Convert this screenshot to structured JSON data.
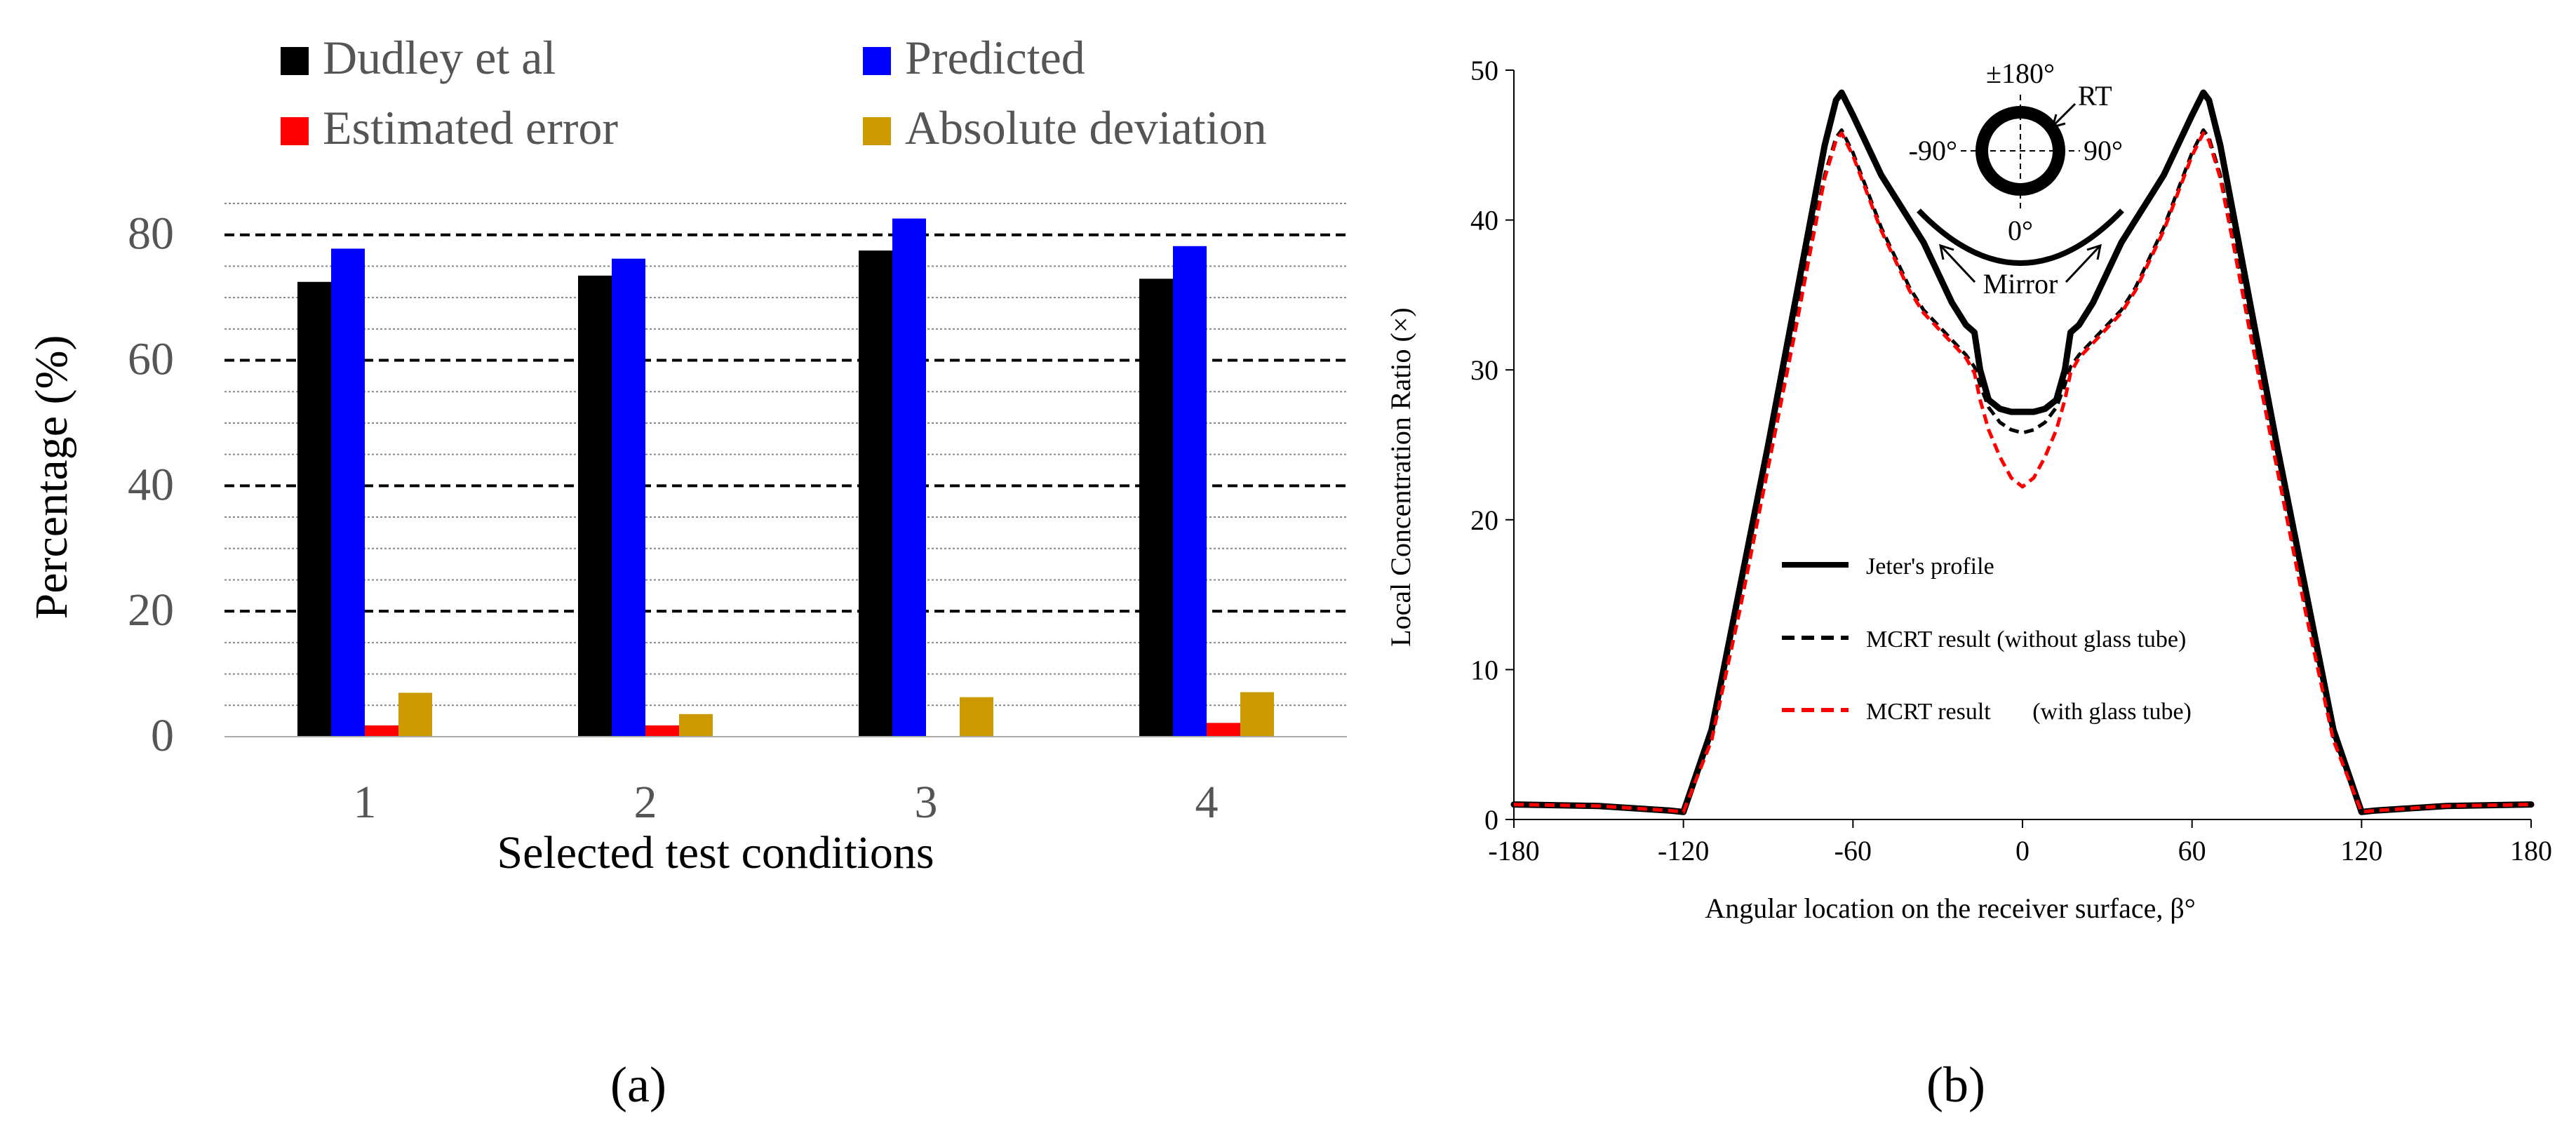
{
  "panel_a_label": "(a)",
  "panel_b_label": "(b)",
  "chart_data": [
    {
      "type": "bar",
      "title": "",
      "xlabel": "Selected test conditions",
      "ylabel": "Percentage (%)",
      "ylim": [
        0,
        85
      ],
      "yticks": [
        0,
        20,
        40,
        60,
        80
      ],
      "categories": [
        "1",
        "2",
        "3",
        "4"
      ],
      "legend_placement": "top",
      "series": [
        {
          "name": "Dudley et al",
          "color": "#000000",
          "values": [
            72.5,
            73.5,
            77.5,
            73.0
          ]
        },
        {
          "name": "Predicted",
          "color": "#0000ff",
          "values": [
            77.8,
            76.2,
            82.6,
            78.2
          ]
        },
        {
          "name": "Estimated error",
          "color": "#ff0000",
          "values": [
            1.8,
            1.8,
            0,
            2.2
          ]
        },
        {
          "name": "Absolute deviation",
          "color": "#cc9900",
          "values": [
            7.0,
            3.6,
            6.3,
            7.1
          ]
        }
      ]
    },
    {
      "type": "line",
      "title": "",
      "xlabel": "Angular location on the receiver surface, β°",
      "ylabel": "Local Concentration Ratio (×)",
      "xlim": [
        -180,
        180
      ],
      "ylim": [
        0,
        50
      ],
      "xticks": [
        -180,
        -120,
        -60,
        0,
        60,
        120,
        180
      ],
      "yticks": [
        0,
        10,
        20,
        30,
        40,
        50
      ],
      "legend_placement": "center-left",
      "series": [
        {
          "name": "Jeter's profile",
          "color": "#000000",
          "style": "solid",
          "x": [
            -180,
            -150,
            -125,
            -120,
            -110,
            -100,
            -90,
            -80,
            -75,
            -70,
            -66,
            -64,
            -60,
            -55,
            -50,
            -45,
            -40,
            -35,
            -30,
            -25,
            -20,
            -17,
            -15,
            -12,
            -8,
            -4,
            0,
            4,
            8,
            12,
            15,
            17,
            20,
            25,
            30,
            35,
            40,
            45,
            50,
            55,
            60,
            64,
            66,
            70,
            75,
            80,
            90,
            100,
            110,
            120,
            125,
            150,
            180
          ],
          "y": [
            1.0,
            0.9,
            0.6,
            0.5,
            6.0,
            15.5,
            25.0,
            35.0,
            40.0,
            45.0,
            48.0,
            48.5,
            47.0,
            45.0,
            43.0,
            41.5,
            40.0,
            38.5,
            36.5,
            34.5,
            33.0,
            32.5,
            30.0,
            28.0,
            27.4,
            27.2,
            27.2,
            27.2,
            27.4,
            28.0,
            30.0,
            32.5,
            33.0,
            34.5,
            36.5,
            38.5,
            40.0,
            41.5,
            43.0,
            45.0,
            47.0,
            48.5,
            48.0,
            45.0,
            40.0,
            35.0,
            25.0,
            15.5,
            6.0,
            0.5,
            0.6,
            0.9,
            1.0
          ]
        },
        {
          "name": "MCRT result (without glass tube)",
          "color": "#000000",
          "style": "dashed",
          "x": [
            -180,
            -150,
            -125,
            -120,
            -110,
            -100,
            -90,
            -80,
            -75,
            -70,
            -66,
            -64,
            -60,
            -55,
            -50,
            -45,
            -40,
            -35,
            -30,
            -25,
            -20,
            -17,
            -15,
            -12,
            -8,
            -4,
            0,
            4,
            8,
            12,
            15,
            17,
            20,
            25,
            30,
            35,
            40,
            45,
            50,
            55,
            60,
            64,
            66,
            70,
            75,
            80,
            90,
            100,
            110,
            120,
            125,
            150,
            180
          ],
          "y": [
            1.0,
            0.9,
            0.6,
            0.5,
            5.5,
            14.5,
            24.0,
            33.5,
            38.5,
            43.0,
            45.5,
            46.0,
            44.5,
            42.0,
            39.5,
            37.5,
            35.5,
            34.0,
            33.0,
            32.0,
            31.0,
            30.2,
            29.0,
            27.5,
            26.5,
            26.0,
            25.8,
            26.0,
            26.5,
            27.5,
            29.0,
            30.2,
            31.0,
            32.0,
            33.0,
            34.0,
            35.5,
            37.5,
            39.5,
            42.0,
            44.5,
            46.0,
            45.5,
            43.0,
            38.5,
            33.5,
            24.0,
            14.5,
            5.5,
            0.5,
            0.6,
            0.9,
            1.0
          ]
        },
        {
          "name": "MCRT result       (with glass tube)",
          "color": "#ff0000",
          "style": "dashed",
          "x": [
            -180,
            -150,
            -125,
            -120,
            -110,
            -100,
            -90,
            -80,
            -75,
            -70,
            -66,
            -64,
            -60,
            -55,
            -50,
            -45,
            -40,
            -35,
            -30,
            -25,
            -20,
            -17,
            -15,
            -12,
            -8,
            -4,
            0,
            4,
            8,
            12,
            15,
            17,
            20,
            25,
            30,
            35,
            40,
            45,
            50,
            55,
            60,
            64,
            66,
            70,
            75,
            80,
            90,
            100,
            110,
            120,
            125,
            150,
            180
          ],
          "y": [
            1.0,
            0.9,
            0.6,
            0.5,
            5.3,
            14.0,
            23.5,
            33.0,
            38.0,
            42.8,
            45.3,
            45.8,
            44.3,
            41.8,
            39.3,
            37.3,
            35.3,
            33.8,
            32.8,
            31.8,
            30.8,
            29.8,
            28.0,
            26.0,
            24.2,
            22.8,
            22.2,
            22.8,
            24.2,
            26.0,
            28.0,
            29.8,
            30.8,
            31.8,
            32.8,
            33.8,
            35.3,
            37.3,
            39.3,
            41.8,
            44.3,
            45.8,
            45.3,
            42.8,
            38.0,
            33.0,
            23.5,
            14.0,
            5.3,
            0.5,
            0.6,
            0.9,
            1.0
          ]
        }
      ],
      "inset": {
        "top_label": "±180°",
        "receiver_label": "RT",
        "left_label": "-90°",
        "right_label": "90°",
        "bottom_label": "0°",
        "mirror_label": "Mirror"
      }
    }
  ]
}
